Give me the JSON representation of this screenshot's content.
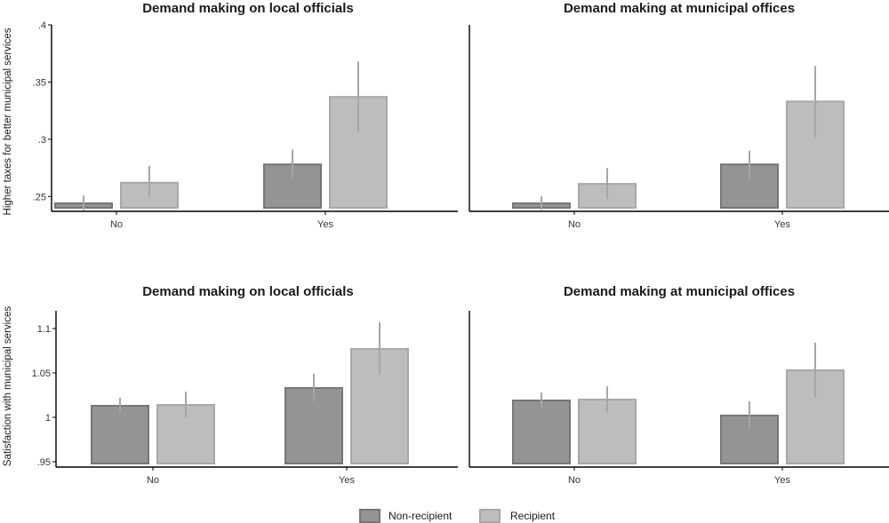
{
  "colors": {
    "non_recipient_fill": "#949494",
    "non_recipient_stroke": "#767676",
    "recipient_fill": "#bdbdbd",
    "recipient_stroke": "#a8a8a8",
    "error_bar": "#a6a6a6"
  },
  "row_labels": [
    "Higher taxes for better municipal services",
    "Satisfaction with municipal services"
  ],
  "legend": {
    "placement": "bottom-center",
    "items": [
      {
        "label": "Non-recipient",
        "color": "#949494"
      },
      {
        "label": "Recipient",
        "color": "#bdbdbd"
      }
    ]
  },
  "chart_data": [
    {
      "type": "bar",
      "title": "Demand making on local officials",
      "xlabel": "",
      "ylabel": "Higher taxes for better municipal services",
      "categories": [
        "No",
        "Yes"
      ],
      "ylim": [
        0.237,
        0.4
      ],
      "yticks": [
        0.25,
        0.3,
        0.35,
        0.4
      ],
      "ytick_labels": [
        ".25",
        ".3",
        ".35",
        ".4"
      ],
      "series": [
        {
          "name": "Non-recipient",
          "values": [
            0.244,
            0.278
          ],
          "ci_low": [
            0.238,
            0.266
          ],
          "ci_high": [
            0.251,
            0.291
          ]
        },
        {
          "name": "Recipient",
          "values": [
            0.262,
            0.337
          ],
          "ci_low": [
            0.249,
            0.306
          ],
          "ci_high": [
            0.277,
            0.368
          ]
        }
      ]
    },
    {
      "type": "bar",
      "title": "Demand making at municipal offices",
      "xlabel": "",
      "ylabel": "",
      "categories": [
        "No",
        "Yes"
      ],
      "ylim": [
        0.237,
        0.4
      ],
      "yticks": [],
      "ytick_labels": [],
      "series": [
        {
          "name": "Non-recipient",
          "values": [
            0.244,
            0.278
          ],
          "ci_low": [
            0.238,
            0.265
          ],
          "ci_high": [
            0.25,
            0.29
          ]
        },
        {
          "name": "Recipient",
          "values": [
            0.261,
            0.333
          ],
          "ci_low": [
            0.248,
            0.301
          ],
          "ci_high": [
            0.275,
            0.364
          ]
        }
      ]
    },
    {
      "type": "bar",
      "title": "Demand making on local officials",
      "xlabel": "",
      "ylabel": "Satisfaction with municipal services",
      "categories": [
        "No",
        "Yes"
      ],
      "ylim": [
        0.944,
        1.12
      ],
      "yticks": [
        0.95,
        1.0,
        1.05,
        1.1
      ],
      "ytick_labels": [
        ".95",
        "1",
        "1.05",
        "1.1"
      ],
      "series": [
        {
          "name": "Non-recipient",
          "values": [
            1.013,
            1.033
          ],
          "ci_low": [
            1.005,
            1.018
          ],
          "ci_high": [
            1.022,
            1.049
          ]
        },
        {
          "name": "Recipient",
          "values": [
            1.014,
            1.077
          ],
          "ci_low": [
            0.999,
            1.048
          ],
          "ci_high": [
            1.029,
            1.107
          ]
        }
      ]
    },
    {
      "type": "bar",
      "title": "Demand making at municipal offices",
      "xlabel": "",
      "ylabel": "",
      "categories": [
        "No",
        "Yes"
      ],
      "ylim": [
        0.944,
        1.12
      ],
      "yticks": [],
      "ytick_labels": [],
      "series": [
        {
          "name": "Non-recipient",
          "values": [
            1.019,
            1.002
          ],
          "ci_low": [
            1.011,
            0.986
          ],
          "ci_high": [
            1.028,
            1.018
          ]
        },
        {
          "name": "Recipient",
          "values": [
            1.02,
            1.053
          ],
          "ci_low": [
            1.006,
            1.022
          ],
          "ci_high": [
            1.035,
            1.084
          ]
        }
      ]
    }
  ]
}
